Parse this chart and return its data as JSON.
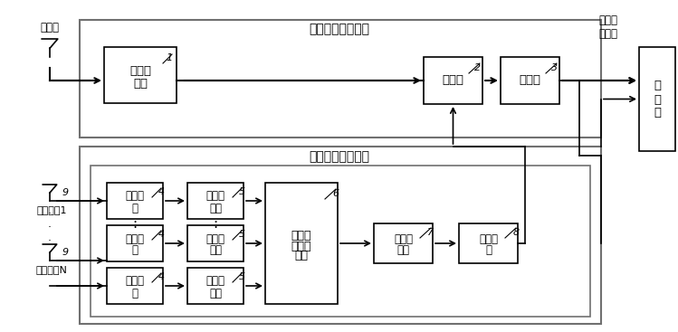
{
  "title_analog": "模拟干扰对消模块",
  "title_digital": "数字波束形成模块",
  "main_antenna_label": "主天线",
  "output_label": "对消输\n出信号",
  "receiver_label": "接\n收\n机",
  "aux_ant1_label": "辅助天线1",
  "aux_antN_label": "辅助天线N",
  "block1_line1": "微波延",
  "block1_line2": "时线",
  "block2_label": "合成器",
  "block3_label": "耦合器",
  "block4_line1": "下变频",
  "block4_line2": "器",
  "block5_line1": "模数转",
  "block5_line2": "换器",
  "block6_line1": "数字信",
  "block6_line2": "号处理",
  "block6_line3": "单元",
  "block7_line1": "数模转",
  "block7_line2": "换器",
  "block8_line1": "上变频",
  "block8_line2": "器",
  "num1": "1",
  "num2": "2",
  "num3": "3",
  "num4": "4",
  "num5": "5",
  "num6": "6",
  "num7": "7",
  "num8": "8",
  "num9": "9",
  "bg_color": "#ffffff",
  "gray_ec": "#707070",
  "black_ec": "#000000"
}
